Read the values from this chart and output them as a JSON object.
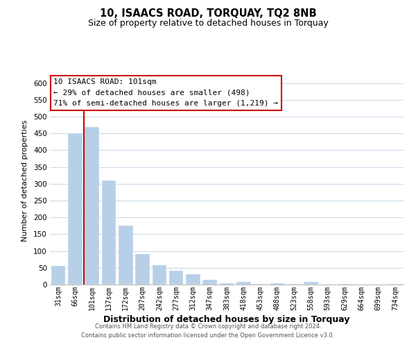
{
  "title": "10, ISAACS ROAD, TORQUAY, TQ2 8NB",
  "subtitle": "Size of property relative to detached houses in Torquay",
  "xlabel": "Distribution of detached houses by size in Torquay",
  "ylabel": "Number of detached properties",
  "bar_labels": [
    "31sqm",
    "66sqm",
    "101sqm",
    "137sqm",
    "172sqm",
    "207sqm",
    "242sqm",
    "277sqm",
    "312sqm",
    "347sqm",
    "383sqm",
    "418sqm",
    "453sqm",
    "488sqm",
    "523sqm",
    "558sqm",
    "593sqm",
    "629sqm",
    "664sqm",
    "699sqm",
    "734sqm"
  ],
  "bar_values": [
    55,
    450,
    470,
    310,
    175,
    90,
    58,
    42,
    30,
    15,
    5,
    9,
    2,
    4,
    2,
    8,
    0,
    2,
    0,
    0,
    2
  ],
  "highlight_index": 2,
  "bar_color": "#b8cfe8",
  "vline_color": "#cc0000",
  "ylim": [
    0,
    620
  ],
  "yticks": [
    0,
    50,
    100,
    150,
    200,
    250,
    300,
    350,
    400,
    450,
    500,
    550,
    600
  ],
  "annotation_text_line1": "10 ISAACS ROAD: 101sqm",
  "annotation_text_line2": "← 29% of detached houses are smaller (498)",
  "annotation_text_line3": "71% of semi-detached houses are larger (1,219) →",
  "annotation_box_color": "#ffffff",
  "annotation_box_edge_color": "#cc0000",
  "footer_line1": "Contains HM Land Registry data © Crown copyright and database right 2024.",
  "footer_line2": "Contains public sector information licensed under the Open Government Licence v3.0.",
  "background_color": "#ffffff",
  "grid_color": "#c8d8e8"
}
